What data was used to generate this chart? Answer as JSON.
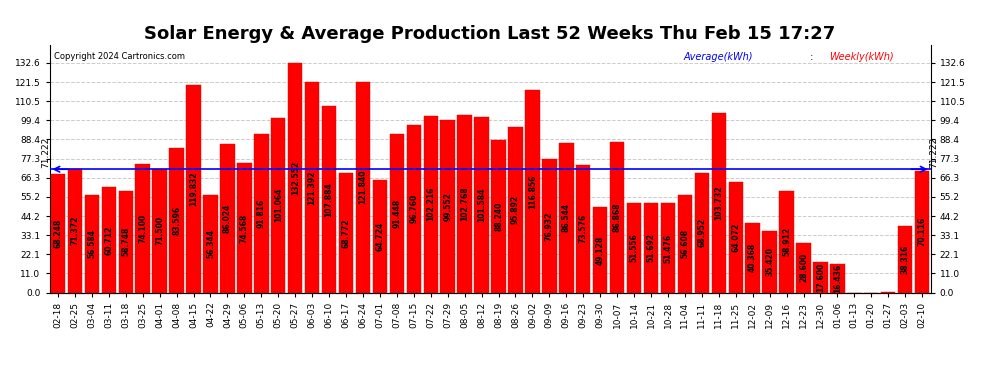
{
  "title": "Solar Energy & Average Production Last 52 Weeks Thu Feb 15 17:27",
  "copyright": "Copyright 2024 Cartronics.com",
  "average_label": "Average(kWh)",
  "weekly_label": "Weekly(kWh)",
  "average_value": 71.222,
  "categories": [
    "02-18",
    "02-25",
    "03-04",
    "03-11",
    "03-18",
    "03-25",
    "04-01",
    "04-08",
    "04-15",
    "04-22",
    "04-29",
    "05-06",
    "05-13",
    "05-20",
    "05-27",
    "06-03",
    "06-10",
    "06-17",
    "06-24",
    "07-01",
    "07-08",
    "07-15",
    "07-22",
    "07-29",
    "08-05",
    "08-12",
    "08-19",
    "08-26",
    "09-02",
    "09-09",
    "09-16",
    "09-23",
    "09-30",
    "10-07",
    "10-14",
    "10-21",
    "10-28",
    "11-04",
    "11-11",
    "11-18",
    "11-25",
    "12-02",
    "12-09",
    "12-16",
    "12-23",
    "12-30",
    "01-06",
    "01-13",
    "01-20",
    "01-27",
    "02-03",
    "02-10"
  ],
  "values": [
    68.248,
    71.372,
    56.584,
    60.712,
    58.748,
    74.1,
    71.5,
    83.596,
    119.832,
    56.344,
    86.024,
    74.568,
    91.816,
    101.064,
    132.552,
    121.392,
    107.884,
    68.772,
    121.84,
    64.724,
    91.448,
    96.76,
    102.216,
    99.552,
    102.768,
    101.584,
    88.24,
    95.892,
    116.856,
    76.932,
    86.544,
    73.576,
    49.128,
    86.868,
    51.556,
    51.692,
    51.476,
    56.608,
    68.952,
    103.732,
    64.072,
    40.368,
    35.42,
    58.912,
    28.6,
    17.6,
    16.436,
    0.0,
    0.0,
    0.148,
    38.316,
    70.116
  ],
  "bar_color": "#ff0000",
  "bar_edge_color": "#dd0000",
  "average_line_color": "#0000ff",
  "bg_color": "#ffffff",
  "grid_color": "#cccccc",
  "yticks": [
    0.0,
    11.0,
    22.1,
    33.1,
    44.2,
    55.2,
    66.3,
    77.3,
    88.4,
    99.4,
    110.5,
    121.5,
    132.6
  ],
  "ylim": [
    0.0,
    143.0
  ],
  "title_fontsize": 13,
  "tick_fontsize": 6.5,
  "annotation_fontsize": 5.5
}
